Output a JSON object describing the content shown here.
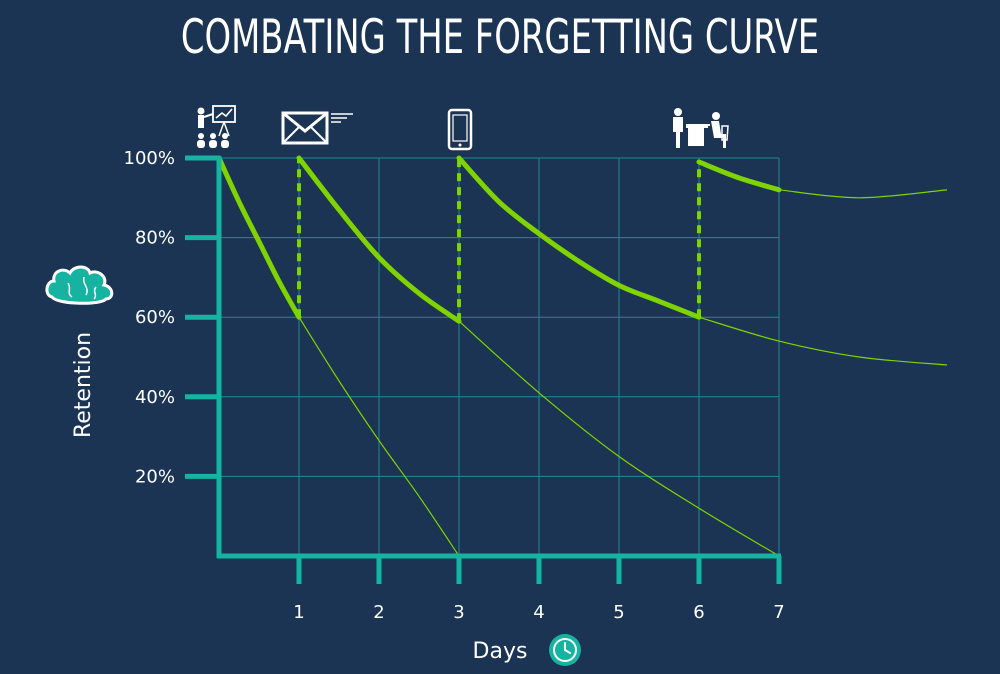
{
  "title": "COMBATING THE FORGETTING CURVE",
  "colors": {
    "background": "#1b3454",
    "axis": "#16b3a0",
    "grid": "#1e8a94",
    "curve": "#7fd400",
    "text": "#ffffff"
  },
  "icons": {
    "top": [
      "presentation-icon",
      "email-icon",
      "smartphone-icon",
      "coaching-meeting-icon"
    ],
    "y_axis": "brain-icon",
    "x_axis": "clock-icon"
  },
  "chart_data": {
    "type": "line",
    "title": "COMBATING THE FORGETTING CURVE",
    "xlabel": "Days",
    "ylabel": "Retention",
    "xlim": [
      -1,
      7
    ],
    "ylim": [
      0,
      100
    ],
    "x_ticks": [
      "1",
      "2",
      "3",
      "4",
      "5",
      "6",
      "7"
    ],
    "y_ticks": [
      "20%",
      "40%",
      "60%",
      "80%",
      "100%"
    ],
    "grid": true,
    "reinforcement_days": [
      0,
      1,
      3,
      6
    ],
    "series": [
      {
        "role": "reinforced",
        "segments": [
          {
            "x": [
              0,
              0.25,
              0.5,
              0.75,
              1
            ],
            "y": [
              100,
              89,
              79,
              69,
              60
            ]
          },
          {
            "x": [
              1,
              1.5,
              2,
              2.5,
              3
            ],
            "y": [
              100,
              87,
              75,
              66,
              59
            ]
          },
          {
            "x": [
              3,
              3.5,
              4,
              4.5,
              5,
              5.5,
              6
            ],
            "y": [
              100,
              89,
              81,
              74,
              68,
              64,
              60
            ]
          },
          {
            "x": [
              6,
              6.5,
              7
            ],
            "y": [
              99,
              95,
              92
            ]
          }
        ]
      },
      {
        "role": "forgetting",
        "segments": [
          {
            "x": [
              1,
              1.5,
              2,
              2.5,
              3
            ],
            "y": [
              60,
              44,
              29,
              15,
              0
            ]
          },
          {
            "x": [
              3,
              4,
              5,
              6,
              7
            ],
            "y": [
              59,
              41,
              25,
              12,
              0
            ]
          },
          {
            "x": [
              6,
              7,
              8,
              9.1
            ],
            "y": [
              60,
              54,
              50,
              48
            ]
          },
          {
            "x": [
              7,
              8,
              9.1
            ],
            "y": [
              92,
              90,
              92
            ]
          }
        ]
      }
    ]
  }
}
